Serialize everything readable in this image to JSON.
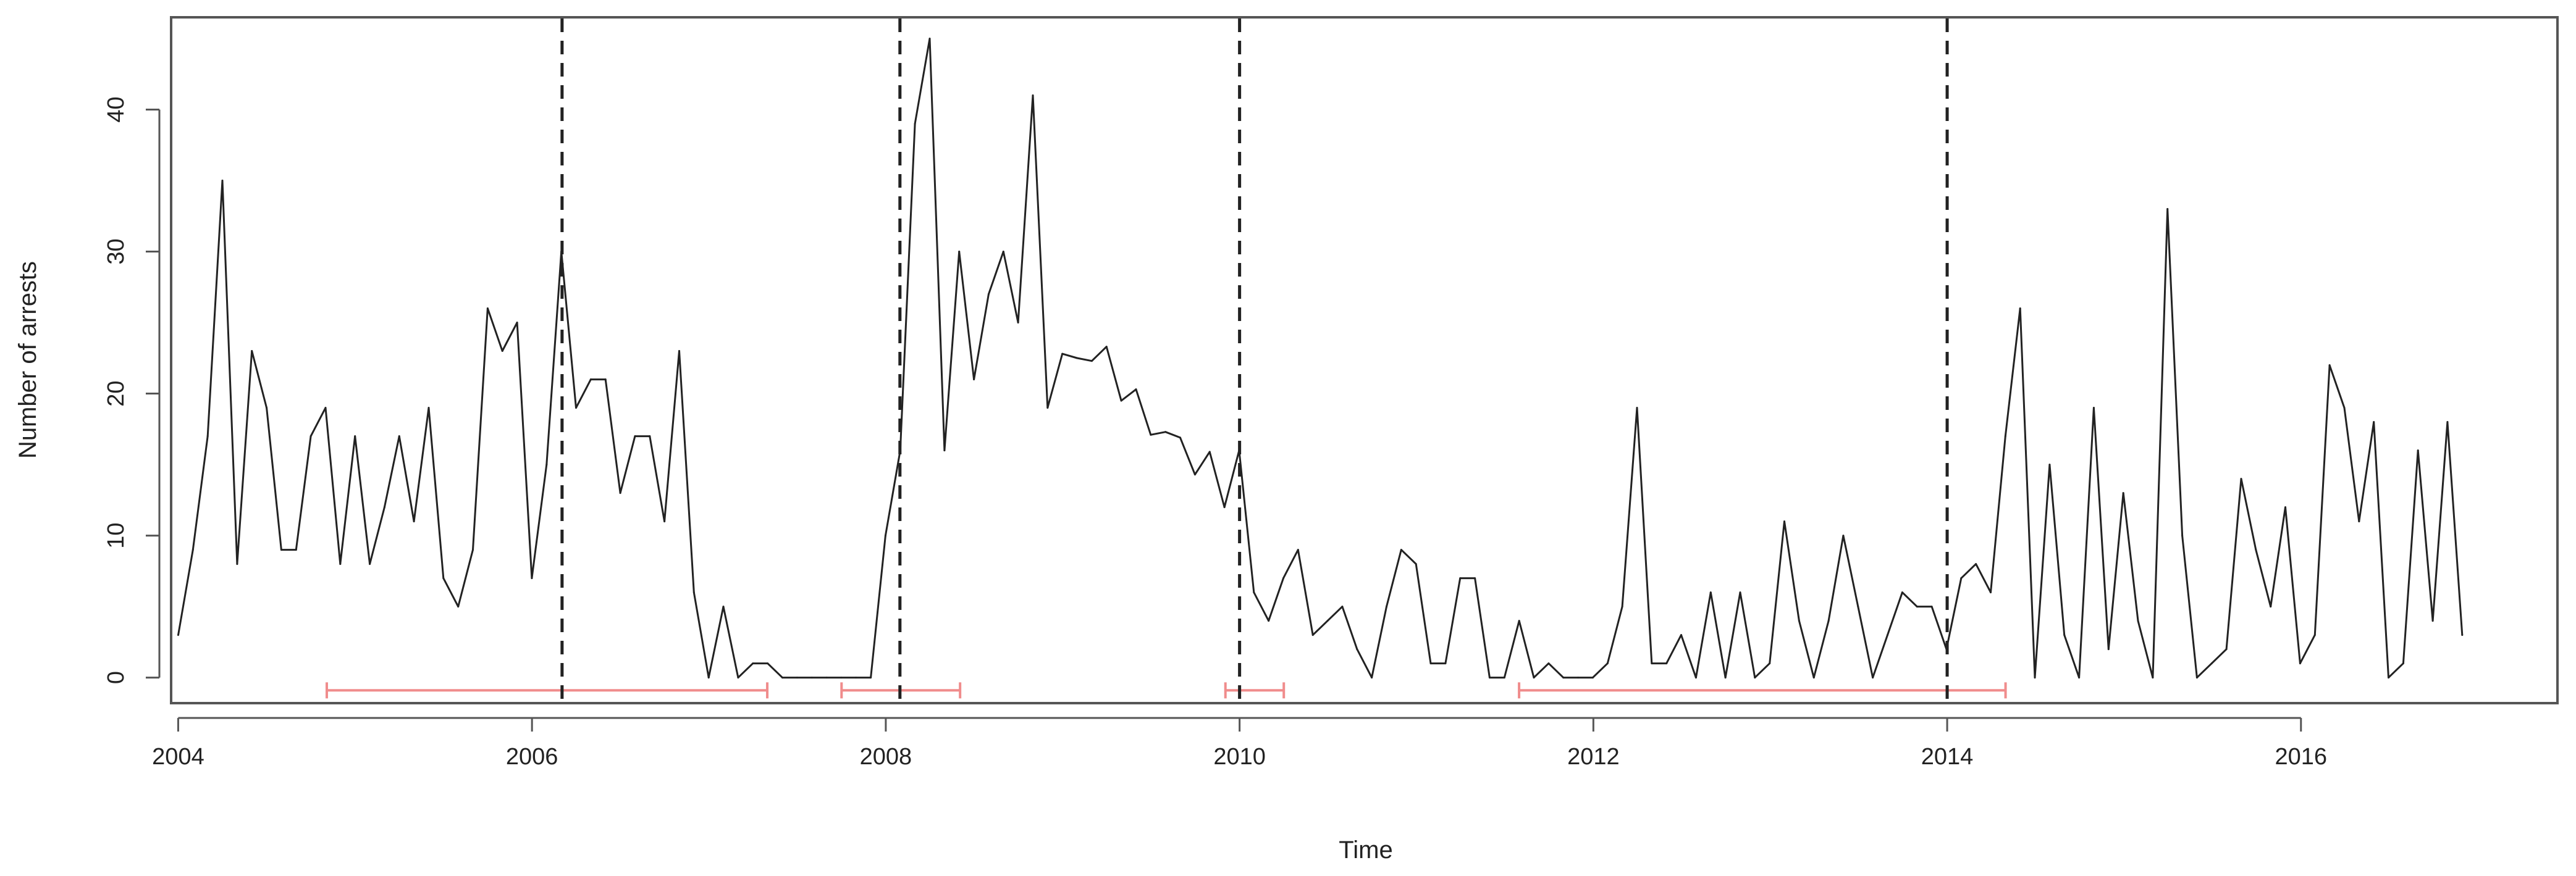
{
  "chart_data": {
    "type": "line",
    "title": "",
    "xlabel": "Time",
    "ylabel": "Number of arrests",
    "xlim": [
      2003.96,
      2017.45
    ],
    "ylim": [
      -1.8,
      46.5
    ],
    "x_ticks": [
      2004,
      2006,
      2008,
      2010,
      2012,
      2014,
      2016
    ],
    "x_tick_labels": [
      "2004",
      "2006",
      "2008",
      "2010",
      "2012",
      "2014",
      "2016"
    ],
    "y_ticks": [
      0,
      10,
      20,
      30,
      40
    ],
    "y_tick_labels": [
      "0",
      "10",
      "20",
      "30",
      "40"
    ],
    "grid": false,
    "legend": "none",
    "series": [
      {
        "color": "#222222",
        "start": 2004.0,
        "step": 0.0833,
        "values": [
          3,
          9,
          17,
          35,
          8,
          23,
          19,
          9,
          9,
          17,
          19,
          8,
          17,
          8,
          12,
          17,
          11,
          19,
          7,
          5,
          9,
          26,
          23,
          25,
          7,
          15,
          30,
          19,
          21,
          21,
          13,
          17,
          17,
          11,
          23,
          6,
          0,
          5,
          0,
          1,
          1,
          0,
          0,
          0,
          0,
          0,
          0,
          0,
          10,
          16,
          39,
          45,
          16,
          30,
          21,
          27,
          30,
          25,
          41,
          19,
          22.8,
          22.5,
          22.3,
          23.3,
          19.5,
          20.3,
          17.1,
          17.3,
          16.9,
          14.3,
          15.9,
          12,
          16,
          6,
          4,
          7,
          9,
          3,
          4,
          5,
          2,
          0,
          5,
          9,
          8,
          1,
          1,
          7,
          7,
          0,
          0,
          4,
          0,
          1,
          0,
          0,
          0,
          1,
          5,
          19,
          1,
          1,
          3,
          0,
          6,
          0,
          6,
          0,
          1,
          11,
          4,
          0,
          4,
          10,
          5,
          0,
          3,
          6,
          5,
          5,
          2,
          7,
          8,
          6,
          17,
          26,
          0,
          15,
          3,
          0,
          19,
          2,
          13,
          4,
          0,
          33,
          10,
          0,
          1,
          2,
          14,
          9,
          5,
          12,
          1,
          3,
          22,
          19,
          11,
          18,
          0,
          1,
          16,
          4,
          18,
          3
        ]
      }
    ],
    "vertical_lines": [
      2006.17,
      2008.08,
      2010.0,
      2014.0
    ],
    "vertical_line_style": "dashed",
    "intervals": [
      {
        "start": 2004.84,
        "end": 2007.33
      },
      {
        "start": 2007.75,
        "end": 2008.42
      },
      {
        "start": 2009.92,
        "end": 2010.25
      },
      {
        "start": 2011.58,
        "end": 2014.33
      }
    ],
    "interval_color": "#f08c8c",
    "line_color": "#222222",
    "axis_color": "#555555"
  }
}
